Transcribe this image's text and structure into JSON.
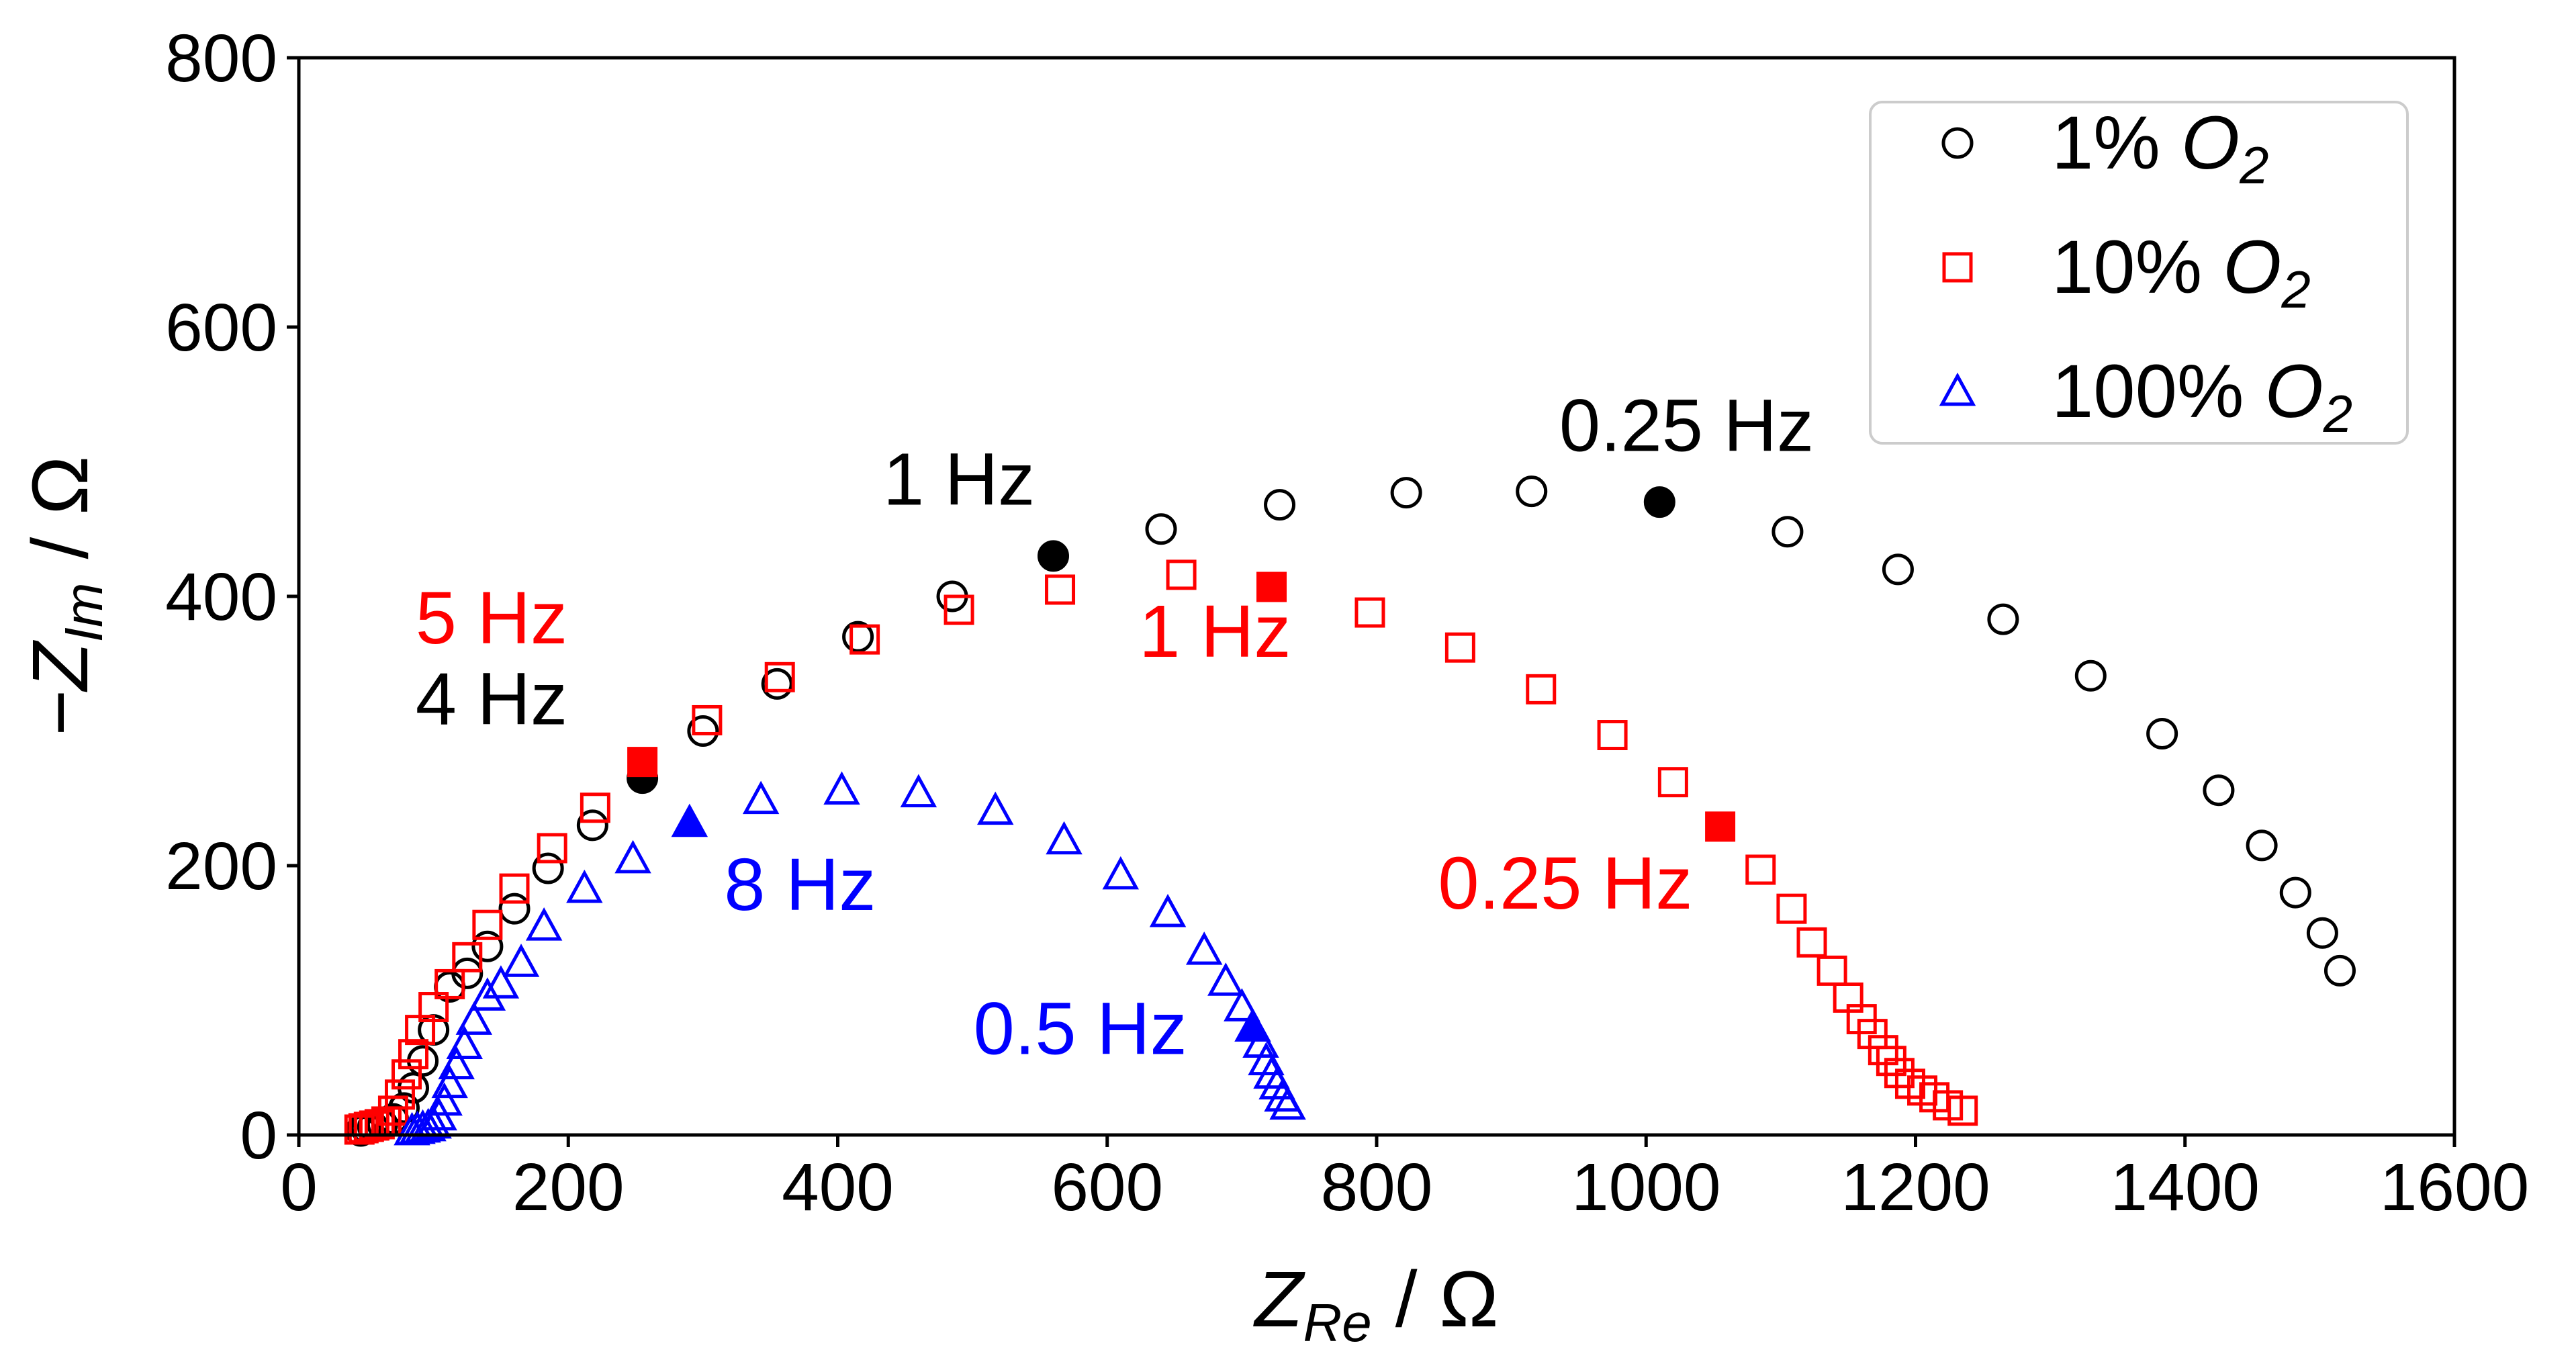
{
  "chart_data": {
    "type": "scatter",
    "xlabel": {
      "main": "Z",
      "sub": "Re",
      "unit": "/  Ω"
    },
    "ylabel": {
      "main": "−Z",
      "sub": "Im",
      "unit": "/  Ω"
    },
    "xlim": [
      0,
      1600
    ],
    "ylim": [
      0,
      800
    ],
    "xticks": [
      "0",
      "200",
      "400",
      "600",
      "800",
      "1000",
      "1200",
      "1400",
      "1600"
    ],
    "yticks": [
      "0",
      "200",
      "400",
      "600",
      "800"
    ],
    "grid": false,
    "legend_position": "top-right",
    "series": [
      {
        "name": "1% O",
        "name_sub": "2",
        "marker": "circle",
        "color": "#000000",
        "points": [
          [
            46,
            3
          ],
          [
            50,
            5
          ],
          [
            55,
            6
          ],
          [
            62,
            8
          ],
          [
            70,
            12
          ],
          [
            78,
            20
          ],
          [
            85,
            35
          ],
          [
            92,
            55
          ],
          [
            100,
            78
          ],
          [
            112,
            110
          ],
          [
            125,
            120
          ],
          [
            140,
            140
          ],
          [
            160,
            168
          ],
          [
            185,
            198
          ],
          [
            218,
            230
          ],
          [
            255,
            265
          ],
          [
            300,
            300
          ],
          [
            355,
            335
          ],
          [
            415,
            370
          ],
          [
            485,
            400
          ],
          [
            560,
            430
          ],
          [
            640,
            450
          ],
          [
            728,
            468
          ],
          [
            822,
            477
          ],
          [
            915,
            478
          ],
          [
            1010,
            470
          ],
          [
            1105,
            448
          ],
          [
            1187,
            420
          ],
          [
            1265,
            383
          ],
          [
            1330,
            341
          ],
          [
            1383,
            298
          ],
          [
            1425,
            256
          ],
          [
            1457,
            215
          ],
          [
            1482,
            180
          ],
          [
            1502,
            150
          ],
          [
            1515,
            122
          ]
        ],
        "filled_points": [
          [
            255,
            265
          ],
          [
            560,
            430
          ],
          [
            1010,
            470
          ]
        ]
      },
      {
        "name": "10% O",
        "name_sub": "2",
        "marker": "square",
        "color": "#ff0000",
        "points": [
          [
            45,
            4
          ],
          [
            48,
            5
          ],
          [
            52,
            6
          ],
          [
            56,
            7
          ],
          [
            60,
            8
          ],
          [
            65,
            10
          ],
          [
            70,
            18
          ],
          [
            75,
            30
          ],
          [
            80,
            45
          ],
          [
            85,
            60
          ],
          [
            90,
            78
          ],
          [
            100,
            95
          ],
          [
            112,
            112
          ],
          [
            125,
            132
          ],
          [
            140,
            156
          ],
          [
            160,
            183
          ],
          [
            188,
            213
          ],
          [
            220,
            243
          ],
          [
            255,
            277
          ],
          [
            303,
            308
          ],
          [
            357,
            340
          ],
          [
            420,
            368
          ],
          [
            490,
            390
          ],
          [
            565,
            405
          ],
          [
            655,
            416
          ],
          [
            722,
            407
          ],
          [
            795,
            388
          ],
          [
            862,
            362
          ],
          [
            922,
            331
          ],
          [
            975,
            297
          ],
          [
            1020,
            262
          ],
          [
            1055,
            229
          ],
          [
            1085,
            197
          ],
          [
            1108,
            168
          ],
          [
            1123,
            143
          ],
          [
            1138,
            122
          ],
          [
            1150,
            102
          ],
          [
            1160,
            86
          ],
          [
            1168,
            75
          ],
          [
            1176,
            63
          ],
          [
            1182,
            55
          ],
          [
            1188,
            46
          ],
          [
            1196,
            38
          ],
          [
            1205,
            33
          ],
          [
            1214,
            28
          ],
          [
            1224,
            22
          ],
          [
            1235,
            18
          ]
        ],
        "filled_points": [
          [
            255,
            277
          ],
          [
            722,
            407
          ],
          [
            1055,
            229
          ]
        ]
      },
      {
        "name": "100% O",
        "name_sub": "2",
        "marker": "triangle",
        "color": "#0000ff",
        "points": [
          [
            84,
            3
          ],
          [
            88,
            4
          ],
          [
            92,
            5
          ],
          [
            96,
            6
          ],
          [
            100,
            8
          ],
          [
            104,
            14
          ],
          [
            108,
            25
          ],
          [
            112,
            38
          ],
          [
            117,
            52
          ],
          [
            123,
            67
          ],
          [
            130,
            85
          ],
          [
            140,
            103
          ],
          [
            150,
            112
          ],
          [
            165,
            128
          ],
          [
            182,
            155
          ],
          [
            212,
            183
          ],
          [
            248,
            205
          ],
          [
            290,
            232
          ],
          [
            343,
            249
          ],
          [
            403,
            256
          ],
          [
            460,
            254
          ],
          [
            517,
            241
          ],
          [
            568,
            219
          ],
          [
            610,
            193
          ],
          [
            645,
            165
          ],
          [
            672,
            137
          ],
          [
            688,
            114
          ],
          [
            700,
            95
          ],
          [
            708,
            80
          ],
          [
            714,
            68
          ],
          [
            718,
            55
          ],
          [
            722,
            45
          ],
          [
            726,
            37
          ],
          [
            730,
            28
          ],
          [
            734,
            22
          ]
        ],
        "filled_points": [
          [
            290,
            232
          ],
          [
            708,
            80
          ]
        ]
      }
    ],
    "annotations": [
      {
        "text": "1 Hz",
        "color": "#000000",
        "x": 490,
        "y": 468,
        "anchor": "middle"
      },
      {
        "text": "0.25 Hz",
        "color": "#000000",
        "x": 1030,
        "y": 508,
        "anchor": "middle"
      },
      {
        "text": "5 Hz",
        "color": "#ff0000",
        "x": 143,
        "y": 365,
        "anchor": "middle"
      },
      {
        "text": "4 Hz",
        "color": "#000000",
        "x": 143,
        "y": 305,
        "anchor": "middle"
      },
      {
        "text": "1 Hz",
        "color": "#ff0000",
        "x": 680,
        "y": 355,
        "anchor": "middle"
      },
      {
        "text": "8 Hz",
        "color": "#0000ff",
        "x": 372,
        "y": 167,
        "anchor": "middle"
      },
      {
        "text": "0.25 Hz",
        "color": "#ff0000",
        "x": 940,
        "y": 168,
        "anchor": "middle"
      },
      {
        "text": "0.5 Hz",
        "color": "#0000ff",
        "x": 580,
        "y": 60,
        "anchor": "middle"
      }
    ]
  }
}
